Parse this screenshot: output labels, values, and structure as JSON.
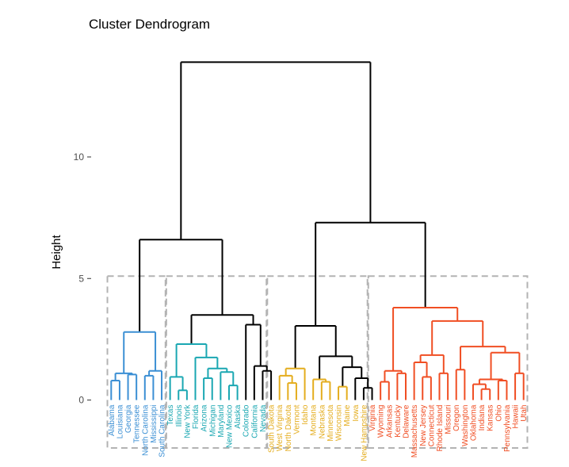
{
  "chart_data": {
    "type": "dendrogram",
    "title": "Cluster Dendrogram",
    "xlabel": "",
    "ylabel": "Height",
    "ylim": [
      -2.2,
      14.5
    ],
    "yticks": [
      0,
      5,
      10
    ],
    "cut_height": 5.1,
    "grid": false,
    "cluster_colors": [
      "#3b8fd4",
      "#1aa7b2",
      "#e4ad1e",
      "#f04e23"
    ],
    "root_color": "#000000",
    "box_color": "#b3b3b3",
    "leaves": [
      {
        "label": "Alabama",
        "cluster": 0
      },
      {
        "label": "Louisiana",
        "cluster": 0
      },
      {
        "label": "Georgia",
        "cluster": 0
      },
      {
        "label": "Tennessee",
        "cluster": 0
      },
      {
        "label": "North Carolina",
        "cluster": 0
      },
      {
        "label": "Mississippi",
        "cluster": 0
      },
      {
        "label": "South Carolina",
        "cluster": 0
      },
      {
        "label": "Texas",
        "cluster": 1
      },
      {
        "label": "Illinois",
        "cluster": 1
      },
      {
        "label": "New York",
        "cluster": 1
      },
      {
        "label": "Florida",
        "cluster": 1
      },
      {
        "label": "Arizona",
        "cluster": 1
      },
      {
        "label": "Michigan",
        "cluster": 1
      },
      {
        "label": "Maryland",
        "cluster": 1
      },
      {
        "label": "New Mexico",
        "cluster": 1
      },
      {
        "label": "Alaska",
        "cluster": 1
      },
      {
        "label": "Colorado",
        "cluster": 1
      },
      {
        "label": "California",
        "cluster": 1
      },
      {
        "label": "Nevada",
        "cluster": 1
      },
      {
        "label": "South Dakota",
        "cluster": 2
      },
      {
        "label": "West Virginia",
        "cluster": 2
      },
      {
        "label": "North Dakota",
        "cluster": 2
      },
      {
        "label": "Vermont",
        "cluster": 2
      },
      {
        "label": "Idaho",
        "cluster": 2
      },
      {
        "label": "Montana",
        "cluster": 2
      },
      {
        "label": "Nebraska",
        "cluster": 2
      },
      {
        "label": "Minnesota",
        "cluster": 2
      },
      {
        "label": "Wisconsin",
        "cluster": 2
      },
      {
        "label": "Maine",
        "cluster": 2
      },
      {
        "label": "Iowa",
        "cluster": 2
      },
      {
        "label": "New Hampshire",
        "cluster": 2
      },
      {
        "label": "Virginia",
        "cluster": 3
      },
      {
        "label": "Wyoming",
        "cluster": 3
      },
      {
        "label": "Arkansas",
        "cluster": 3
      },
      {
        "label": "Kentucky",
        "cluster": 3
      },
      {
        "label": "Delaware",
        "cluster": 3
      },
      {
        "label": "Massachusetts",
        "cluster": 3
      },
      {
        "label": "New Jersey",
        "cluster": 3
      },
      {
        "label": "Connecticut",
        "cluster": 3
      },
      {
        "label": "Rhode Island",
        "cluster": 3
      },
      {
        "label": "Missouri",
        "cluster": 3
      },
      {
        "label": "Oregon",
        "cluster": 3
      },
      {
        "label": "Washington",
        "cluster": 3
      },
      {
        "label": "Oklahoma",
        "cluster": 3
      },
      {
        "label": "Indiana",
        "cluster": 3
      },
      {
        "label": "Kansas",
        "cluster": 3
      },
      {
        "label": "Ohio",
        "cluster": 3
      },
      {
        "label": "Pennsylvania",
        "cluster": 3
      },
      {
        "label": "Hawaii",
        "cluster": 3
      },
      {
        "label": "Utah",
        "cluster": 3
      }
    ],
    "tree": {
      "h": 13.9,
      "c": [
        {
          "h": 6.6,
          "c": [
            {
              "h": 2.8,
              "c": [
                {
                  "h": 1.1,
                  "c": [
                    {
                      "h": 0.8,
                      "c": [
                        {
                          "leaf": 0
                        },
                        {
                          "leaf": 1
                        }
                      ]
                    },
                    {
                      "h": 1.05,
                      "c": [
                        {
                          "leaf": 2
                        },
                        {
                          "leaf": 3
                        }
                      ]
                    }
                  ]
                },
                {
                  "h": 1.2,
                  "c": [
                    {
                      "h": 1.0,
                      "c": [
                        {
                          "leaf": 4
                        },
                        {
                          "leaf": 5
                        }
                      ]
                    },
                    {
                      "leaf": 6
                    }
                  ]
                }
              ]
            },
            {
              "h": 3.5,
              "c": [
                {
                  "h": 2.3,
                  "c": [
                    {
                      "h": 0.95,
                      "c": [
                        {
                          "leaf": 7
                        },
                        {
                          "h": 0.4,
                          "c": [
                            {
                              "leaf": 8
                            },
                            {
                              "leaf": 9
                            }
                          ]
                        }
                      ]
                    },
                    {
                      "h": 1.75,
                      "c": [
                        {
                          "leaf": 10
                        },
                        {
                          "h": 1.3,
                          "c": [
                            {
                              "h": 0.9,
                              "c": [
                                {
                                  "leaf": 11
                                },
                                {
                                  "leaf": 12
                                }
                              ]
                            },
                            {
                              "h": 1.15,
                              "c": [
                                {
                                  "leaf": 13
                                },
                                {
                                  "h": 0.6,
                                  "c": [
                                    {
                                      "leaf": 14
                                    },
                                    {
                                      "leaf": 15
                                    }
                                  ]
                                }
                              ]
                            }
                          ]
                        }
                      ]
                    }
                  ]
                },
                {
                  "h": 3.1,
                  "c": [
                    {
                      "leaf": 16
                    },
                    {
                      "h": 1.4,
                      "c": [
                        {
                          "leaf": 17
                        },
                        {
                          "h": 1.2,
                          "c": [
                            {
                              "leaf": 18
                            },
                            {
                              "leaf": 19
                            }
                          ]
                        }
                      ]
                    }
                  ]
                }
              ]
            }
          ]
        },
        {
          "h": 7.3,
          "c": [
            {
              "h": 3.05,
              "c": [
                {
                  "h": 1.3,
                  "c": [
                    {
                      "h": 1.0,
                      "c": [
                        {
                          "leaf": 20
                        },
                        {
                          "h": 0.7,
                          "c": [
                            {
                              "leaf": 21
                            },
                            {
                              "leaf": 22
                            }
                          ]
                        }
                      ]
                    },
                    {
                      "leaf": 23
                    }
                  ]
                },
                {
                  "h": 1.8,
                  "c": [
                    {
                      "h": 0.85,
                      "c": [
                        {
                          "leaf": 24
                        },
                        {
                          "h": 0.75,
                          "c": [
                            {
                              "leaf": 25
                            },
                            {
                              "leaf": 26
                            }
                          ]
                        }
                      ]
                    },
                    {
                      "h": 1.35,
                      "c": [
                        {
                          "h": 0.55,
                          "c": [
                            {
                              "leaf": 27
                            },
                            {
                              "leaf": 28
                            }
                          ]
                        },
                        {
                          "h": 0.9,
                          "c": [
                            {
                              "leaf": 29
                            },
                            {
                              "h": 0.5,
                              "c": [
                                {
                                  "leaf": 30
                                },
                                {
                                  "leaf": 31
                                }
                              ]
                            }
                          ]
                        }
                      ]
                    }
                  ]
                }
              ]
            },
            {
              "h": 3.8,
              "c": [
                {
                  "h": 1.2,
                  "c": [
                    {
                      "h": 0.75,
                      "c": [
                        {
                          "leaf": 32
                        },
                        {
                          "leaf": 33
                        }
                      ]
                    },
                    {
                      "h": 1.1,
                      "c": [
                        {
                          "leaf": 34
                        },
                        {
                          "leaf": 35
                        }
                      ]
                    }
                  ]
                },
                {
                  "h": 3.25,
                  "c": [
                    {
                      "h": 1.85,
                      "c": [
                        {
                          "h": 1.55,
                          "c": [
                            {
                              "leaf": 36
                            },
                            {
                              "h": 0.95,
                              "c": [
                                {
                                  "leaf": 37
                                },
                                {
                                  "leaf": 38
                                }
                              ]
                            }
                          ]
                        },
                        {
                          "h": 1.1,
                          "c": [
                            {
                              "leaf": 39
                            },
                            {
                              "leaf": 40
                            }
                          ]
                        }
                      ]
                    },
                    {
                      "h": 2.2,
                      "c": [
                        {
                          "h": 1.25,
                          "c": [
                            {
                              "leaf": 41
                            },
                            {
                              "leaf": 42
                            }
                          ]
                        },
                        {
                          "h": 1.95,
                          "c": [
                            {
                              "h": 0.85,
                              "c": [
                                {
                                  "h": 0.65,
                                  "c": [
                                    {
                                      "leaf": 43
                                    },
                                    {
                                      "h": 0.45,
                                      "c": [
                                        {
                                          "leaf": 44
                                        },
                                        {
                                          "leaf": 45
                                        }
                                      ]
                                    }
                                  ]
                                },
                                {
                                  "h": 0.8,
                                  "c": [
                                    {
                                      "leaf": 46
                                    },
                                    {
                                      "leaf": 47
                                    }
                                  ]
                                }
                              ]
                            },
                            {
                              "h": 1.1,
                              "c": [
                                {
                                  "leaf": 48
                                },
                                {
                                  "leaf": 49
                                }
                              ]
                            }
                          ]
                        }
                      ]
                    }
                  ]
                }
              ]
            }
          ]
        }
      ]
    }
  }
}
